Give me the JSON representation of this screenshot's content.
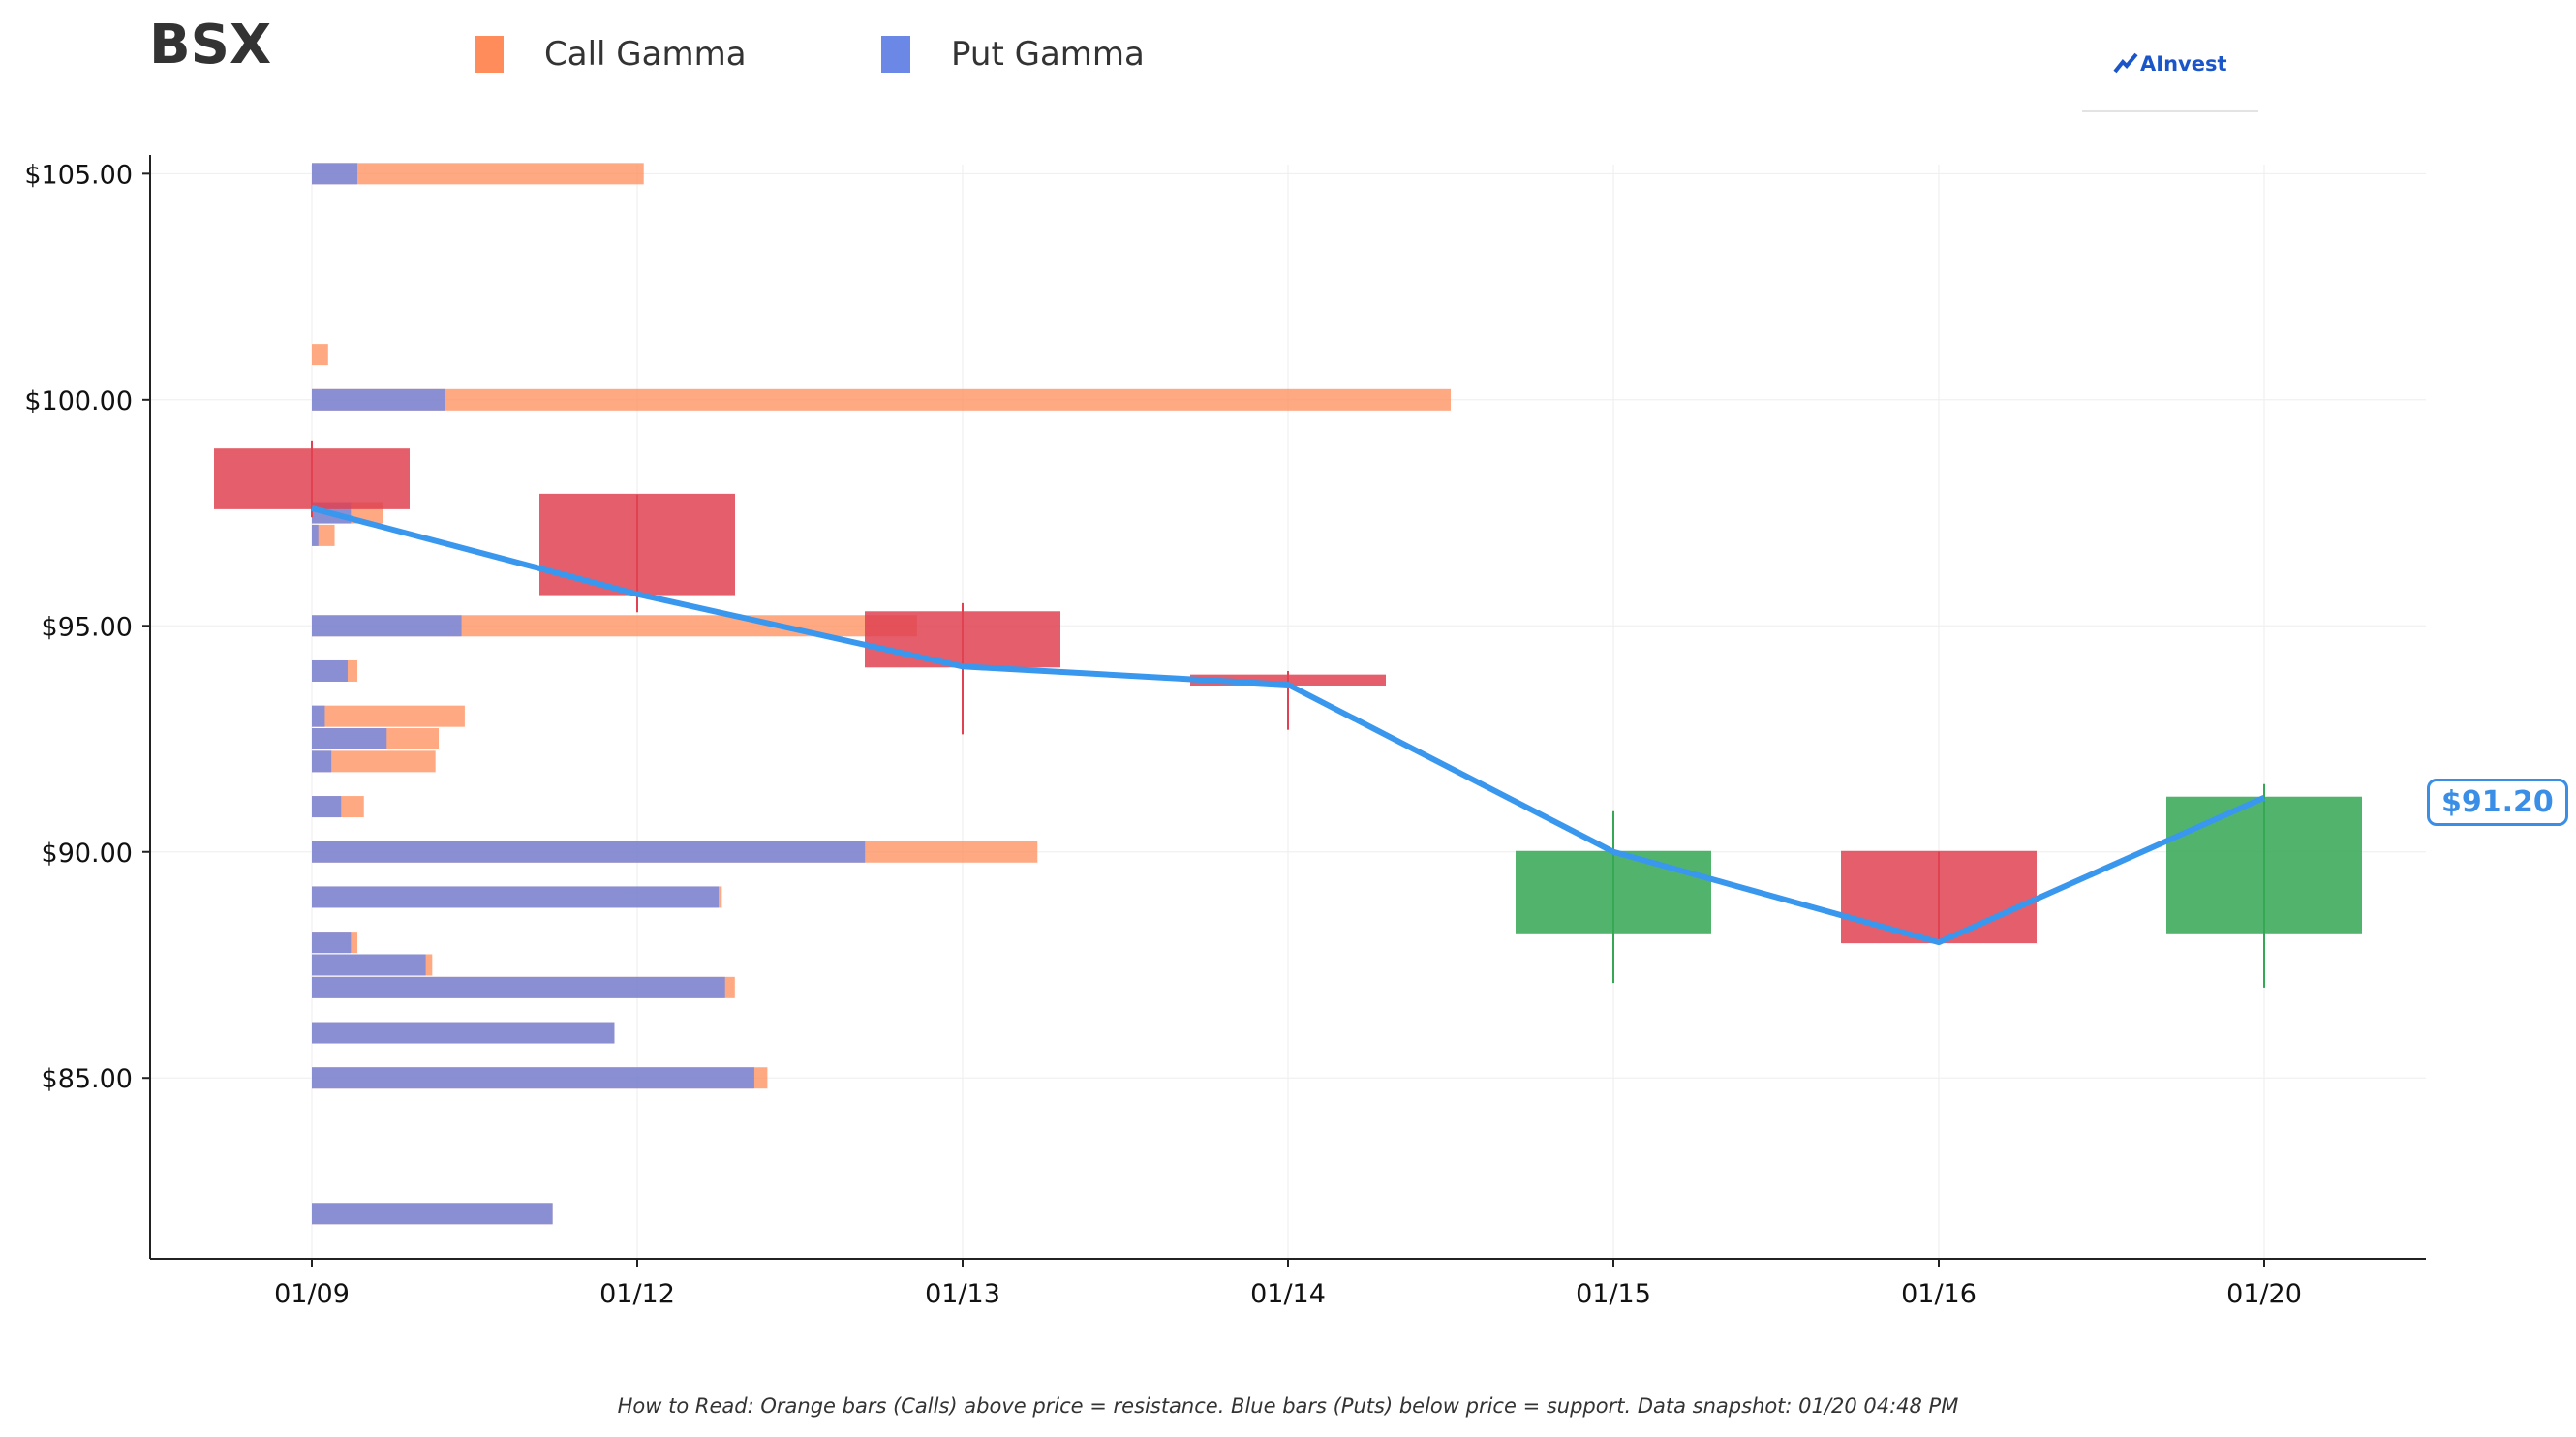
{
  "header": {
    "ticker": "BSX",
    "logo_text": "AInvest",
    "price_badge": "$91.20",
    "footnote": "How to Read: Orange bars (Calls) above price = resistance. Blue bars (Puts) below price = support. Data snapshot: 01/20 04:48 PM"
  },
  "legend": [
    {
      "label": "Call Gamma",
      "color": "#ff8c5a"
    },
    {
      "label": "Put Gamma",
      "color": "#6b88e6"
    }
  ],
  "colors": {
    "up": "#34a853",
    "down": "#e04252",
    "line": "#3a97ee",
    "call": "#ff8c5a",
    "put": "#6b88e6",
    "grid": "#eeeeee",
    "axis": "#222222"
  },
  "chart_data": {
    "type": "candlestick",
    "categories": [
      "01/09",
      "01/12",
      "01/13",
      "01/14",
      "01/15",
      "01/16",
      "01/20"
    ],
    "ylim": [
      81,
      105.2
    ],
    "yticks": [
      85,
      90,
      95,
      100,
      105
    ],
    "ytick_labels": [
      "$85.00",
      "$90.00",
      "$95.00",
      "$100.00",
      "$105.00"
    ],
    "grid": true,
    "candles": [
      {
        "date": "01/09",
        "open": 98.9,
        "close": 97.6,
        "high": 99.1,
        "low": 97.4
      },
      {
        "date": "01/12",
        "open": 97.9,
        "close": 95.7,
        "high": 97.9,
        "low": 95.3
      },
      {
        "date": "01/13",
        "open": 95.3,
        "close": 94.1,
        "high": 95.5,
        "low": 92.6
      },
      {
        "date": "01/14",
        "open": 93.9,
        "close": 93.7,
        "high": 94.0,
        "low": 92.7
      },
      {
        "date": "01/15",
        "open": 88.2,
        "close": 90.0,
        "high": 90.9,
        "low": 87.1
      },
      {
        "date": "01/16",
        "open": 90.0,
        "close": 88.0,
        "high": 90.0,
        "low": 88.0
      },
      {
        "date": "01/20",
        "open": 88.2,
        "close": 91.2,
        "high": 91.5,
        "low": 87.0
      }
    ],
    "close_line": [
      97.6,
      95.7,
      94.1,
      93.7,
      90.0,
      88.0,
      91.2
    ],
    "gamma_levels": [
      {
        "strike": 105,
        "put": 0.14,
        "call": 1.02
      },
      {
        "strike": 101,
        "put": 0,
        "call": 0.05
      },
      {
        "strike": 100,
        "put": 0.41,
        "call": 3.5
      },
      {
        "strike": 97.5,
        "put": 0.12,
        "call": 0.22
      },
      {
        "strike": 97,
        "put": 0.02,
        "call": 0.07
      },
      {
        "strike": 95,
        "put": 0.46,
        "call": 1.86
      },
      {
        "strike": 94,
        "put": 0.11,
        "call": 0.14
      },
      {
        "strike": 93,
        "put": 0.04,
        "call": 0.47
      },
      {
        "strike": 92.5,
        "put": 0.23,
        "call": 0.39
      },
      {
        "strike": 92,
        "put": 0.06,
        "call": 0.38
      },
      {
        "strike": 91,
        "put": 0.09,
        "call": 0.16
      },
      {
        "strike": 90,
        "put": 1.7,
        "call": 2.23
      },
      {
        "strike": 89,
        "put": 1.25,
        "call": 1.26
      },
      {
        "strike": 88,
        "put": 0.12,
        "call": 0.14
      },
      {
        "strike": 87.5,
        "put": 0.35,
        "call": 0.37
      },
      {
        "strike": 87,
        "put": 1.27,
        "call": 1.3
      },
      {
        "strike": 86,
        "put": 0.93,
        "call": 0.93
      },
      {
        "strike": 85,
        "put": 1.36,
        "call": 1.4
      },
      {
        "strike": 82,
        "put": 0.74,
        "call": 0.74
      }
    ]
  }
}
